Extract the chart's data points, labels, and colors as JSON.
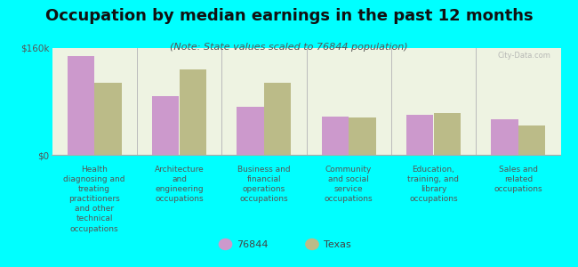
{
  "title": "Occupation by median earnings in the past 12 months",
  "subtitle": "(Note: State values scaled to 76844 population)",
  "categories": [
    "Health\ndiagnosing and\ntreating\npractitioners\nand other\ntechnical\noccupations",
    "Architecture\nand\nengineering\noccupations",
    "Business and\nfinancial\noperations\noccupations",
    "Community\nand social\nservice\noccupations",
    "Education,\ntraining, and\nlibrary\noccupations",
    "Sales and\nrelated\noccupations"
  ],
  "values_76844": [
    148000,
    88000,
    72000,
    58000,
    60000,
    53000
  ],
  "values_texas": [
    108000,
    128000,
    108000,
    56000,
    62000,
    44000
  ],
  "color_76844": "#cc99cc",
  "color_texas": "#bbbb88",
  "ylim": [
    0,
    160000
  ],
  "yticks": [
    0,
    160000
  ],
  "ytick_labels": [
    "$0",
    "$160k"
  ],
  "background_color": "#00ffff",
  "plot_bg_top": "#e8f0d8",
  "plot_bg_bottom": "#f5f8ee",
  "watermark": "City-Data.com",
  "legend_76844": "76844",
  "legend_texas": "Texas",
  "bar_width": 0.32,
  "title_fontsize": 13,
  "subtitle_fontsize": 8,
  "tick_label_fontsize": 6.5,
  "ytick_fontsize": 7.5
}
